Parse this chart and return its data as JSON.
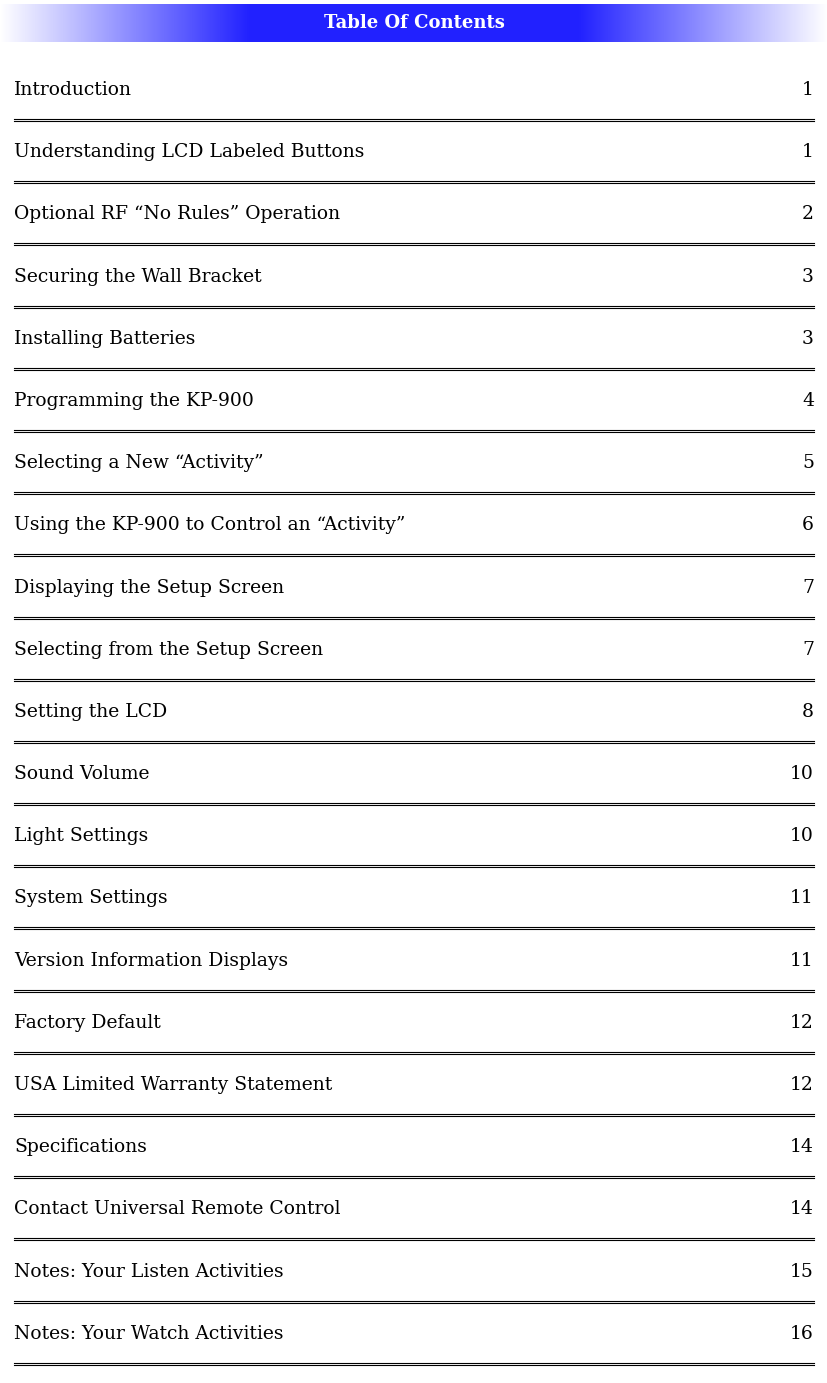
{
  "title": "Table Of Contents",
  "title_color": "#FFFFFF",
  "header_bg_start": "#FFFFFF",
  "header_bg_mid": "#2222EE",
  "header_bg_end": "#FFFFFF",
  "entries": [
    {
      "text": "Introduction",
      "page": "1"
    },
    {
      "text": "Understanding LCD Labeled Buttons",
      "page": "1"
    },
    {
      "text": "Optional RF “No Rules” Operation",
      "page": "2"
    },
    {
      "text": "Securing the Wall Bracket",
      "page": "3"
    },
    {
      "text": "Installing Batteries",
      "page": "3"
    },
    {
      "text": "Programming the KP-900",
      "page": "4"
    },
    {
      "text": "Selecting a New “Activity”",
      "page": "5"
    },
    {
      "text": "Using the KP-900 to Control an “Activity”",
      "page": "6"
    },
    {
      "text": "Displaying the Setup Screen",
      "page": "7"
    },
    {
      "text": "Selecting from the Setup Screen",
      "page": "7"
    },
    {
      "text": "Setting the LCD",
      "page": "8"
    },
    {
      "text": "Sound Volume",
      "page": "10"
    },
    {
      "text": "Light Settings",
      "page": "10"
    },
    {
      "text": "System Settings",
      "page": "11"
    },
    {
      "text": "Version Information Displays",
      "page": "11"
    },
    {
      "text": "Factory Default",
      "page": "12"
    },
    {
      "text": "USA Limited Warranty Statement",
      "page": "12"
    },
    {
      "text": "Specifications",
      "page": "14"
    },
    {
      "text": "Contact Universal Remote Control",
      "page": "14"
    },
    {
      "text": "Notes: Your Listen Activities",
      "page": "15"
    },
    {
      "text": "Notes: Your Watch Activities",
      "page": "16"
    }
  ],
  "bg_color": "#FFFFFF",
  "text_color": "#000000",
  "line_color": "#000000",
  "font_size": 13.5,
  "page_font_size": 13.5
}
